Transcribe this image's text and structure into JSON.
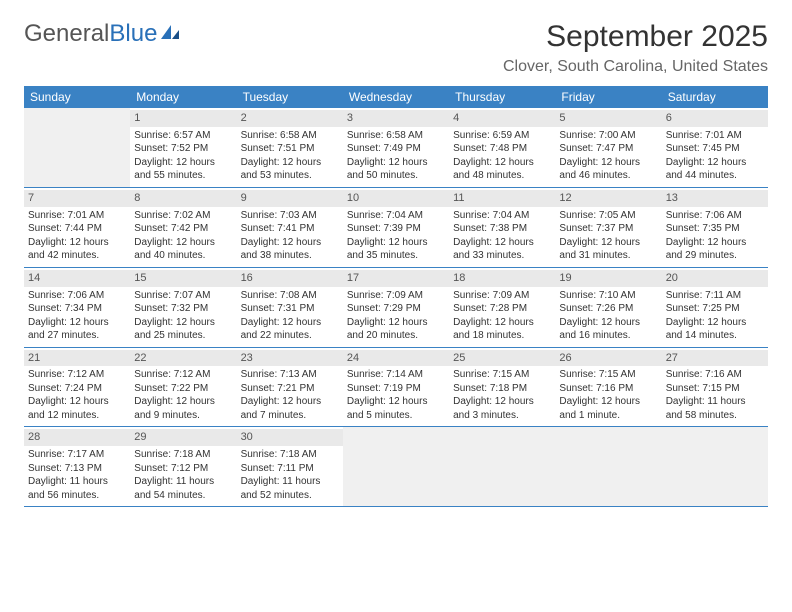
{
  "logo": {
    "text1": "General",
    "text2": "Blue"
  },
  "title": "September 2025",
  "location": "Clover, South Carolina, United States",
  "header_bg": "#3a82c4",
  "daynum_bg": "#e9e9e9",
  "empty_bg": "#f0f0f0",
  "dayHeaders": [
    "Sunday",
    "Monday",
    "Tuesday",
    "Wednesday",
    "Thursday",
    "Friday",
    "Saturday"
  ],
  "weeks": [
    [
      {
        "empty": true
      },
      {
        "num": "1",
        "sunrise": "Sunrise: 6:57 AM",
        "sunset": "Sunset: 7:52 PM",
        "daylight": "Daylight: 12 hours and 55 minutes."
      },
      {
        "num": "2",
        "sunrise": "Sunrise: 6:58 AM",
        "sunset": "Sunset: 7:51 PM",
        "daylight": "Daylight: 12 hours and 53 minutes."
      },
      {
        "num": "3",
        "sunrise": "Sunrise: 6:58 AM",
        "sunset": "Sunset: 7:49 PM",
        "daylight": "Daylight: 12 hours and 50 minutes."
      },
      {
        "num": "4",
        "sunrise": "Sunrise: 6:59 AM",
        "sunset": "Sunset: 7:48 PM",
        "daylight": "Daylight: 12 hours and 48 minutes."
      },
      {
        "num": "5",
        "sunrise": "Sunrise: 7:00 AM",
        "sunset": "Sunset: 7:47 PM",
        "daylight": "Daylight: 12 hours and 46 minutes."
      },
      {
        "num": "6",
        "sunrise": "Sunrise: 7:01 AM",
        "sunset": "Sunset: 7:45 PM",
        "daylight": "Daylight: 12 hours and 44 minutes."
      }
    ],
    [
      {
        "num": "7",
        "sunrise": "Sunrise: 7:01 AM",
        "sunset": "Sunset: 7:44 PM",
        "daylight": "Daylight: 12 hours and 42 minutes."
      },
      {
        "num": "8",
        "sunrise": "Sunrise: 7:02 AM",
        "sunset": "Sunset: 7:42 PM",
        "daylight": "Daylight: 12 hours and 40 minutes."
      },
      {
        "num": "9",
        "sunrise": "Sunrise: 7:03 AM",
        "sunset": "Sunset: 7:41 PM",
        "daylight": "Daylight: 12 hours and 38 minutes."
      },
      {
        "num": "10",
        "sunrise": "Sunrise: 7:04 AM",
        "sunset": "Sunset: 7:39 PM",
        "daylight": "Daylight: 12 hours and 35 minutes."
      },
      {
        "num": "11",
        "sunrise": "Sunrise: 7:04 AM",
        "sunset": "Sunset: 7:38 PM",
        "daylight": "Daylight: 12 hours and 33 minutes."
      },
      {
        "num": "12",
        "sunrise": "Sunrise: 7:05 AM",
        "sunset": "Sunset: 7:37 PM",
        "daylight": "Daylight: 12 hours and 31 minutes."
      },
      {
        "num": "13",
        "sunrise": "Sunrise: 7:06 AM",
        "sunset": "Sunset: 7:35 PM",
        "daylight": "Daylight: 12 hours and 29 minutes."
      }
    ],
    [
      {
        "num": "14",
        "sunrise": "Sunrise: 7:06 AM",
        "sunset": "Sunset: 7:34 PM",
        "daylight": "Daylight: 12 hours and 27 minutes."
      },
      {
        "num": "15",
        "sunrise": "Sunrise: 7:07 AM",
        "sunset": "Sunset: 7:32 PM",
        "daylight": "Daylight: 12 hours and 25 minutes."
      },
      {
        "num": "16",
        "sunrise": "Sunrise: 7:08 AM",
        "sunset": "Sunset: 7:31 PM",
        "daylight": "Daylight: 12 hours and 22 minutes."
      },
      {
        "num": "17",
        "sunrise": "Sunrise: 7:09 AM",
        "sunset": "Sunset: 7:29 PM",
        "daylight": "Daylight: 12 hours and 20 minutes."
      },
      {
        "num": "18",
        "sunrise": "Sunrise: 7:09 AM",
        "sunset": "Sunset: 7:28 PM",
        "daylight": "Daylight: 12 hours and 18 minutes."
      },
      {
        "num": "19",
        "sunrise": "Sunrise: 7:10 AM",
        "sunset": "Sunset: 7:26 PM",
        "daylight": "Daylight: 12 hours and 16 minutes."
      },
      {
        "num": "20",
        "sunrise": "Sunrise: 7:11 AM",
        "sunset": "Sunset: 7:25 PM",
        "daylight": "Daylight: 12 hours and 14 minutes."
      }
    ],
    [
      {
        "num": "21",
        "sunrise": "Sunrise: 7:12 AM",
        "sunset": "Sunset: 7:24 PM",
        "daylight": "Daylight: 12 hours and 12 minutes."
      },
      {
        "num": "22",
        "sunrise": "Sunrise: 7:12 AM",
        "sunset": "Sunset: 7:22 PM",
        "daylight": "Daylight: 12 hours and 9 minutes."
      },
      {
        "num": "23",
        "sunrise": "Sunrise: 7:13 AM",
        "sunset": "Sunset: 7:21 PM",
        "daylight": "Daylight: 12 hours and 7 minutes."
      },
      {
        "num": "24",
        "sunrise": "Sunrise: 7:14 AM",
        "sunset": "Sunset: 7:19 PM",
        "daylight": "Daylight: 12 hours and 5 minutes."
      },
      {
        "num": "25",
        "sunrise": "Sunrise: 7:15 AM",
        "sunset": "Sunset: 7:18 PM",
        "daylight": "Daylight: 12 hours and 3 minutes."
      },
      {
        "num": "26",
        "sunrise": "Sunrise: 7:15 AM",
        "sunset": "Sunset: 7:16 PM",
        "daylight": "Daylight: 12 hours and 1 minute."
      },
      {
        "num": "27",
        "sunrise": "Sunrise: 7:16 AM",
        "sunset": "Sunset: 7:15 PM",
        "daylight": "Daylight: 11 hours and 58 minutes."
      }
    ],
    [
      {
        "num": "28",
        "sunrise": "Sunrise: 7:17 AM",
        "sunset": "Sunset: 7:13 PM",
        "daylight": "Daylight: 11 hours and 56 minutes."
      },
      {
        "num": "29",
        "sunrise": "Sunrise: 7:18 AM",
        "sunset": "Sunset: 7:12 PM",
        "daylight": "Daylight: 11 hours and 54 minutes."
      },
      {
        "num": "30",
        "sunrise": "Sunrise: 7:18 AM",
        "sunset": "Sunset: 7:11 PM",
        "daylight": "Daylight: 11 hours and 52 minutes."
      },
      {
        "empty": true
      },
      {
        "empty": true
      },
      {
        "empty": true
      },
      {
        "empty": true
      }
    ]
  ]
}
